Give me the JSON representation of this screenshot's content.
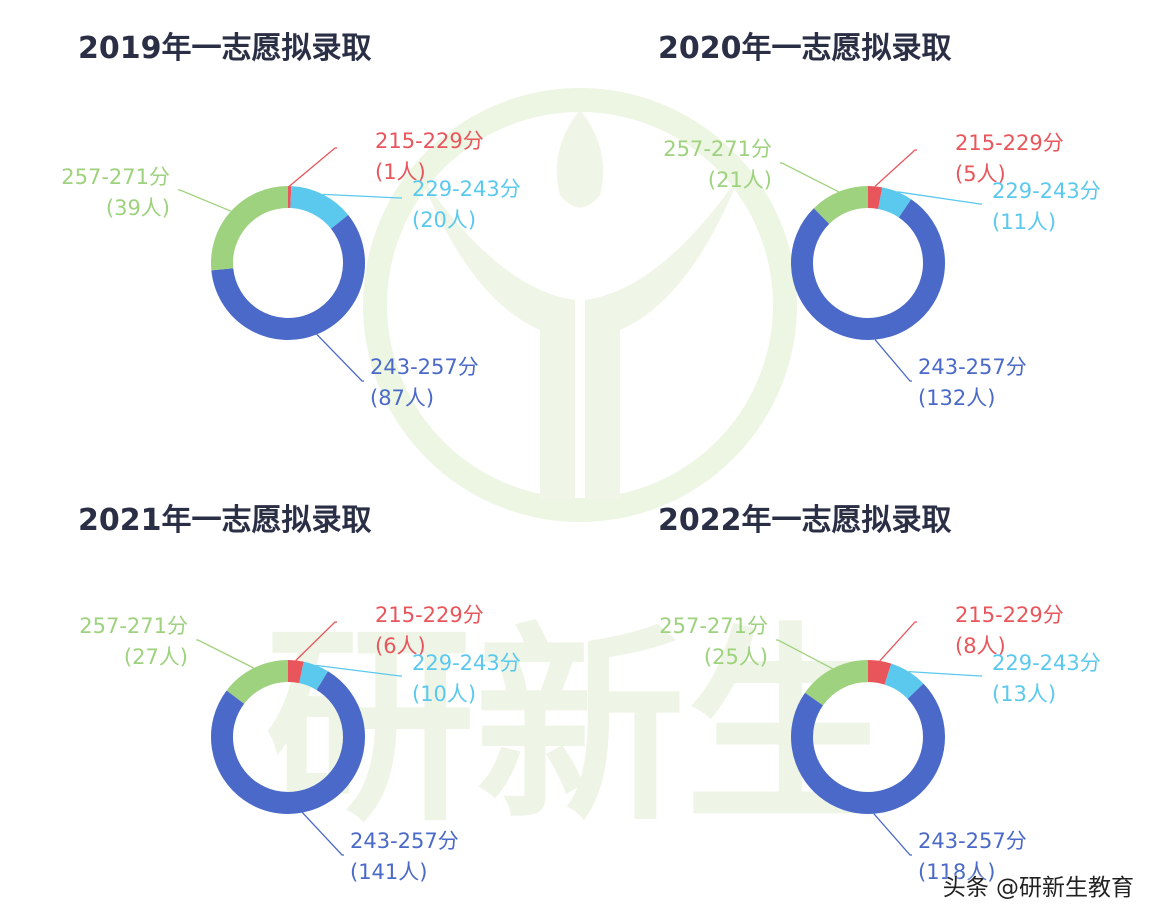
{
  "watermark": {
    "text": "研新生"
  },
  "footer": {
    "credit": "头条 @研新生教育"
  },
  "colors": {
    "red": "#E8555B",
    "cyan": "#5BC8EE",
    "blue": "#4A69C8",
    "green": "#9ED27E",
    "title": "#2B2F45",
    "watermark": "#EDF5E3"
  },
  "chart_data": [
    {
      "type": "pie",
      "title": "2019年一志愿拟录取",
      "slices": [
        {
          "label": "215-229分",
          "count_label": "(1人)",
          "value": 1,
          "color": "#E8555B"
        },
        {
          "label": "229-243分",
          "count_label": "(20人)",
          "value": 20,
          "color": "#5BC8EE"
        },
        {
          "label": "243-257分",
          "count_label": "(87人)",
          "value": 87,
          "color": "#4A69C8"
        },
        {
          "label": "257-271分",
          "count_label": "(39人)",
          "value": 39,
          "color": "#9ED27E"
        }
      ]
    },
    {
      "type": "pie",
      "title": "2020年一志愿拟录取",
      "slices": [
        {
          "label": "215-229分",
          "count_label": "(5人)",
          "value": 5,
          "color": "#E8555B"
        },
        {
          "label": "229-243分",
          "count_label": "(11人)",
          "value": 11,
          "color": "#5BC8EE"
        },
        {
          "label": "243-257分",
          "count_label": "(132人)",
          "value": 132,
          "color": "#4A69C8"
        },
        {
          "label": "257-271分",
          "count_label": "(21人)",
          "value": 21,
          "color": "#9ED27E"
        }
      ]
    },
    {
      "type": "pie",
      "title": "2021年一志愿拟录取",
      "slices": [
        {
          "label": "215-229分",
          "count_label": "(6人)",
          "value": 6,
          "color": "#E8555B"
        },
        {
          "label": "229-243分",
          "count_label": "(10人)",
          "value": 10,
          "color": "#5BC8EE"
        },
        {
          "label": "243-257分",
          "count_label": "(141人)",
          "value": 141,
          "color": "#4A69C8"
        },
        {
          "label": "257-271分",
          "count_label": "(27人)",
          "value": 27,
          "color": "#9ED27E"
        }
      ]
    },
    {
      "type": "pie",
      "title": "2022年一志愿拟录取",
      "slices": [
        {
          "label": "215-229分",
          "count_label": "(8人)",
          "value": 8,
          "color": "#E8555B"
        },
        {
          "label": "229-243分",
          "count_label": "(13人)",
          "value": 13,
          "color": "#5BC8EE"
        },
        {
          "label": "243-257分",
          "count_label": "(118人)",
          "value": 118,
          "color": "#4A69C8"
        },
        {
          "label": "257-271分",
          "count_label": "(25人)",
          "value": 25,
          "color": "#9ED27E"
        }
      ]
    }
  ]
}
